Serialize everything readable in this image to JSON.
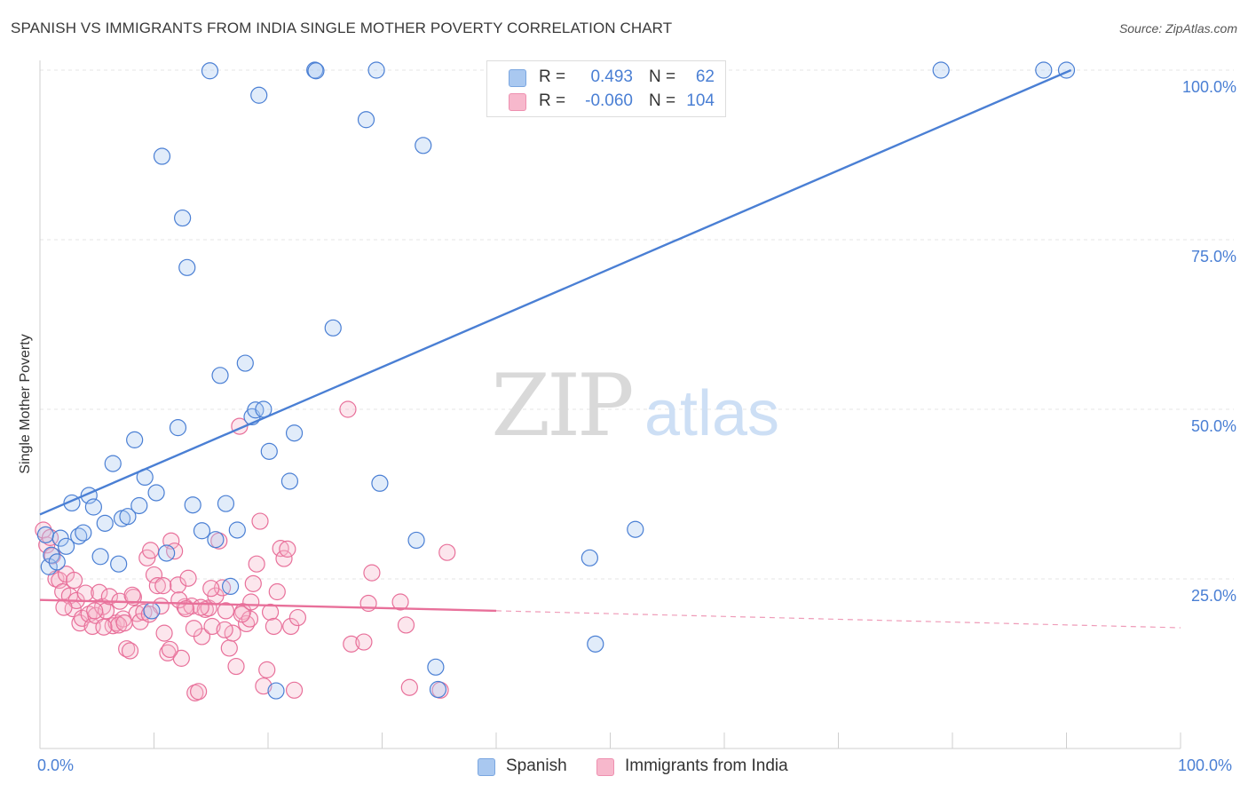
{
  "title": "SPANISH VS IMMIGRANTS FROM INDIA SINGLE MOTHER POVERTY CORRELATION CHART",
  "source": "Source: ZipAtlas.com",
  "watermark": {
    "zip": "ZIP",
    "atlas": "atlas"
  },
  "legend": {
    "r_label": "R =",
    "n_label": "N =",
    "rows": [
      {
        "name": "Spanish",
        "r": "0.493",
        "n": "62",
        "color": "#a9c8f0"
      },
      {
        "name": "Immigrants from India",
        "r": "-0.060",
        "n": "104",
        "color": "#f7b8cc"
      }
    ]
  },
  "chart_data": {
    "type": "scatter",
    "title": "SPANISH VS IMMIGRANTS FROM INDIA SINGLE MOTHER POVERTY CORRELATION CHART",
    "xlabel": "",
    "ylabel": "Single Mother Poverty",
    "xlim": [
      0,
      100
    ],
    "ylim": [
      0,
      100
    ],
    "x_tick_labels": [
      "0.0%",
      "100.0%"
    ],
    "y_ticks": [
      25,
      50,
      75,
      100
    ],
    "y_tick_labels": [
      "25.0%",
      "50.0%",
      "75.0%",
      "100.0%"
    ],
    "grid": true,
    "legend_position": "top-center",
    "colors": {
      "blue": "#4a7fd4",
      "pink": "#e8709a",
      "blue_fill": "#a9c8f0",
      "pink_fill": "#f7b8cc"
    },
    "series": [
      {
        "name": "Spanish",
        "color": "#4a7fd4",
        "trend": {
          "x0": 0,
          "y0": 34.5,
          "x1": 90.4,
          "y1": 100,
          "style": "solid"
        },
        "points": [
          [
            0.5,
            31.5
          ],
          [
            0.8,
            26.8
          ],
          [
            1.0,
            28.5
          ],
          [
            1.5,
            27.5
          ],
          [
            1.8,
            31.0
          ],
          [
            2.3,
            29.8
          ],
          [
            2.8,
            36.2
          ],
          [
            3.4,
            31.3
          ],
          [
            3.8,
            31.8
          ],
          [
            4.3,
            37.3
          ],
          [
            4.7,
            35.6
          ],
          [
            5.3,
            28.3
          ],
          [
            5.7,
            33.2
          ],
          [
            6.4,
            42.0
          ],
          [
            6.9,
            27.2
          ],
          [
            7.2,
            33.9
          ],
          [
            7.7,
            34.2
          ],
          [
            8.3,
            45.5
          ],
          [
            8.7,
            35.8
          ],
          [
            9.2,
            40.0
          ],
          [
            10.2,
            37.7
          ],
          [
            10.7,
            87.3
          ],
          [
            11.1,
            28.8
          ],
          [
            12.1,
            47.3
          ],
          [
            12.5,
            78.2
          ],
          [
            12.9,
            70.9
          ],
          [
            13.4,
            35.9
          ],
          [
            14.2,
            32.1
          ],
          [
            14.9,
            99.9
          ],
          [
            15.4,
            30.8
          ],
          [
            15.8,
            55.0
          ],
          [
            16.3,
            36.1
          ],
          [
            16.7,
            23.9
          ],
          [
            17.3,
            32.2
          ],
          [
            18.0,
            56.8
          ],
          [
            18.6,
            48.9
          ],
          [
            18.9,
            49.9
          ],
          [
            19.2,
            96.3
          ],
          [
            19.6,
            50.0
          ],
          [
            20.1,
            43.8
          ],
          [
            20.7,
            8.5
          ],
          [
            21.9,
            39.4
          ],
          [
            22.3,
            46.5
          ],
          [
            24.1,
            100.0
          ],
          [
            24.2,
            99.9
          ],
          [
            25.7,
            62.0
          ],
          [
            28.6,
            92.7
          ],
          [
            29.5,
            100.0
          ],
          [
            29.8,
            39.1
          ],
          [
            33.0,
            30.7
          ],
          [
            33.6,
            88.9
          ],
          [
            34.7,
            12.0
          ],
          [
            34.9,
            8.7
          ],
          [
            9.8,
            20.3
          ],
          [
            48.2,
            28.1
          ],
          [
            48.7,
            15.4
          ],
          [
            52.2,
            32.3
          ],
          [
            53.7,
            100.0
          ],
          [
            56.8,
            100.0
          ],
          [
            79.0,
            100.0
          ],
          [
            88.0,
            100.0
          ],
          [
            90.0,
            100.0
          ]
        ]
      },
      {
        "name": "Immigrants from India",
        "color": "#e8709a",
        "trend": {
          "x0": 0,
          "y0": 21.9,
          "x1": 40.0,
          "y1": 20.3,
          "style": "solid",
          "extend_x1": 100,
          "extend_y1": 17.8,
          "extend_style": "dashed"
        },
        "points": [
          [
            0.3,
            32.2
          ],
          [
            0.6,
            30.0
          ],
          [
            0.9,
            31.1
          ],
          [
            1.1,
            28.4
          ],
          [
            1.4,
            25.0
          ],
          [
            1.7,
            24.8
          ],
          [
            2.0,
            23.1
          ],
          [
            2.3,
            25.7
          ],
          [
            2.6,
            22.5
          ],
          [
            2.9,
            20.6
          ],
          [
            3.2,
            21.8
          ],
          [
            3.5,
            18.5
          ],
          [
            3.7,
            19.2
          ],
          [
            4.0,
            22.9
          ],
          [
            4.3,
            19.8
          ],
          [
            4.6,
            18.0
          ],
          [
            4.9,
            19.6
          ],
          [
            5.2,
            23.0
          ],
          [
            5.5,
            20.9
          ],
          [
            5.8,
            20.3
          ],
          [
            6.1,
            22.4
          ],
          [
            6.4,
            18.1
          ],
          [
            6.7,
            18.5
          ],
          [
            7.0,
            21.7
          ],
          [
            7.3,
            19.1
          ],
          [
            7.6,
            14.7
          ],
          [
            7.9,
            14.4
          ],
          [
            8.2,
            22.3
          ],
          [
            8.5,
            19.9
          ],
          [
            8.8,
            18.7
          ],
          [
            9.1,
            20.1
          ],
          [
            9.4,
            28.1
          ],
          [
            9.7,
            29.2
          ],
          [
            10.0,
            25.6
          ],
          [
            10.3,
            24.0
          ],
          [
            10.6,
            21.0
          ],
          [
            10.9,
            17.0
          ],
          [
            11.2,
            14.1
          ],
          [
            11.5,
            30.6
          ],
          [
            11.8,
            29.1
          ],
          [
            12.1,
            24.1
          ],
          [
            12.4,
            13.3
          ],
          [
            12.7,
            20.9
          ],
          [
            13.0,
            25.1
          ],
          [
            13.3,
            21.0
          ],
          [
            13.6,
            8.2
          ],
          [
            13.9,
            8.4
          ],
          [
            14.2,
            16.5
          ],
          [
            14.5,
            20.5
          ],
          [
            14.8,
            20.7
          ],
          [
            15.1,
            18.0
          ],
          [
            15.4,
            22.5
          ],
          [
            15.7,
            30.6
          ],
          [
            16.0,
            23.7
          ],
          [
            16.3,
            20.3
          ],
          [
            16.6,
            14.8
          ],
          [
            16.9,
            17.0
          ],
          [
            17.2,
            12.1
          ],
          [
            17.5,
            47.5
          ],
          [
            17.8,
            20.2
          ],
          [
            18.1,
            18.4
          ],
          [
            18.4,
            19.1
          ],
          [
            18.7,
            24.3
          ],
          [
            19.0,
            27.2
          ],
          [
            19.3,
            33.5
          ],
          [
            19.6,
            9.2
          ],
          [
            19.9,
            11.6
          ],
          [
            20.2,
            20.1
          ],
          [
            20.5,
            18.0
          ],
          [
            20.8,
            23.1
          ],
          [
            21.1,
            29.5
          ],
          [
            21.4,
            28.0
          ],
          [
            21.7,
            29.4
          ],
          [
            22.0,
            18.0
          ],
          [
            22.3,
            8.6
          ],
          [
            22.6,
            19.3
          ],
          [
            27.0,
            50.0
          ],
          [
            27.3,
            15.4
          ],
          [
            28.4,
            15.7
          ],
          [
            28.8,
            21.4
          ],
          [
            29.1,
            25.9
          ],
          [
            31.6,
            21.6
          ],
          [
            32.1,
            18.2
          ],
          [
            32.4,
            9.0
          ],
          [
            35.7,
            28.9
          ],
          [
            35.1,
            8.6
          ],
          [
            6.9,
            18.2
          ],
          [
            12.2,
            21.9
          ],
          [
            13.5,
            17.7
          ],
          [
            14.1,
            20.8
          ],
          [
            15.0,
            23.6
          ],
          [
            16.2,
            17.5
          ],
          [
            17.7,
            19.8
          ],
          [
            3.0,
            24.8
          ],
          [
            5.6,
            17.9
          ],
          [
            7.4,
            18.5
          ],
          [
            9.6,
            19.8
          ],
          [
            10.8,
            24.0
          ],
          [
            12.8,
            20.6
          ],
          [
            2.1,
            20.8
          ],
          [
            4.8,
            20.3
          ],
          [
            8.1,
            22.6
          ],
          [
            11.4,
            14.6
          ],
          [
            18.5,
            21.6
          ]
        ]
      }
    ]
  }
}
